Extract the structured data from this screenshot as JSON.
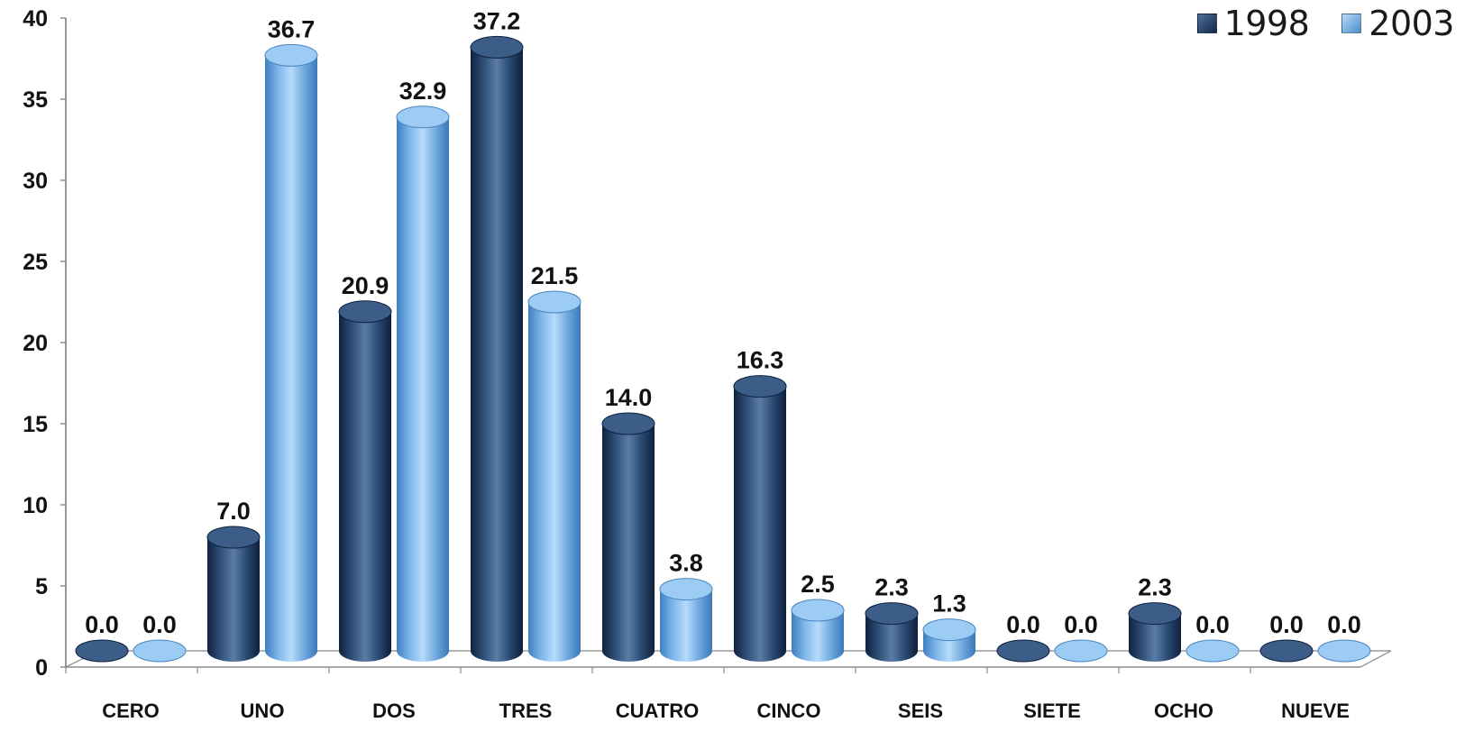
{
  "chart_data": {
    "type": "bar",
    "title": "",
    "xlabel": "",
    "ylabel": "",
    "categories": [
      "CERO",
      "UNO",
      "DOS",
      "TRES",
      "CUATRO",
      "CINCO",
      "SEIS",
      "SIETE",
      "OCHO",
      "NUEVE"
    ],
    "series": [
      {
        "name": "1998",
        "color": "#1f3a5c",
        "values": [
          0.0,
          7.0,
          20.9,
          37.2,
          14.0,
          16.3,
          2.3,
          0.0,
          2.3,
          0.0
        ],
        "labels": [
          "0.0",
          "7.0",
          "20.9",
          "37.2",
          "14.0",
          "16.3",
          "2.3",
          "0.0",
          "2.3",
          "0.0"
        ]
      },
      {
        "name": "2003",
        "color": "#6aa5dd",
        "values": [
          0.0,
          36.7,
          32.9,
          21.5,
          3.8,
          2.5,
          1.3,
          0.0,
          0.0,
          0.0
        ],
        "labels": [
          "0.0",
          "36.7",
          "32.9",
          "21.5",
          "3.8",
          "2.5",
          "1.3",
          "0.0",
          "0.0",
          "0.0"
        ]
      }
    ],
    "ylim": [
      0,
      40
    ],
    "yticks": [
      "0",
      "5",
      "10",
      "15",
      "20",
      "25",
      "30",
      "35",
      "40"
    ],
    "grid": false,
    "legend_position": "top-right",
    "style": "3d-cylinder"
  }
}
